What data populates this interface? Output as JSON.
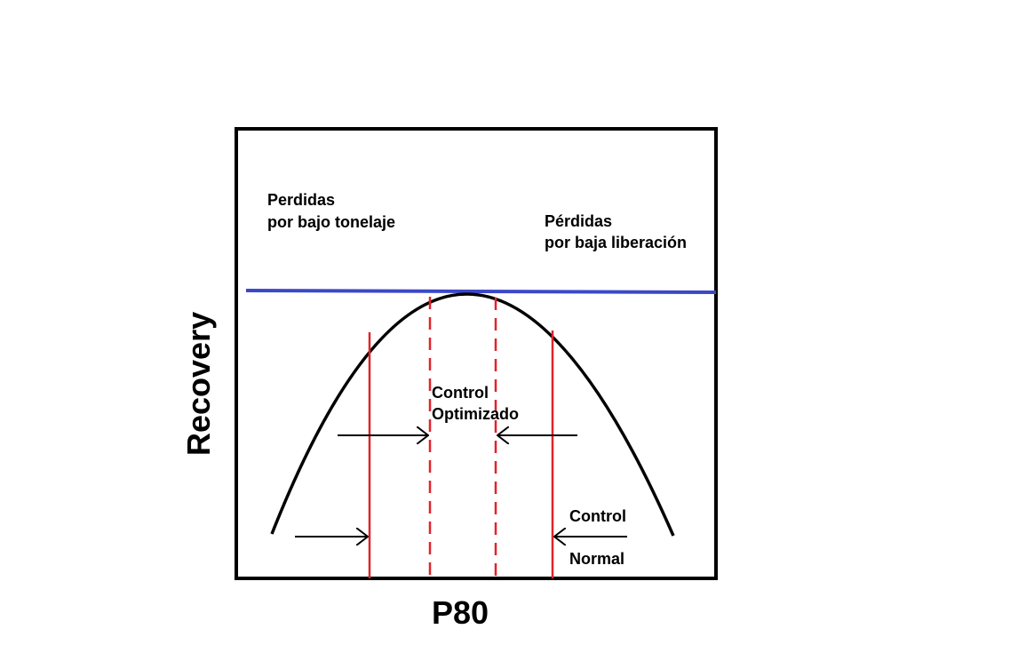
{
  "axes": {
    "x_label": "P80",
    "y_label": "Recovery"
  },
  "annotations": {
    "left_loss": [
      "Perdidas",
      "por bajo tonelaje"
    ],
    "right_loss": [
      "Pérdidas",
      "por baja liberación"
    ],
    "optimized_control": [
      "Control",
      "Optimizado"
    ],
    "normal_control": [
      "Control",
      "Normal"
    ]
  },
  "colors": {
    "curve": "#000000",
    "max_line": "#3b48c8",
    "control_lines": "#e0242a",
    "frame": "#000000",
    "arrows": "#000000"
  }
}
